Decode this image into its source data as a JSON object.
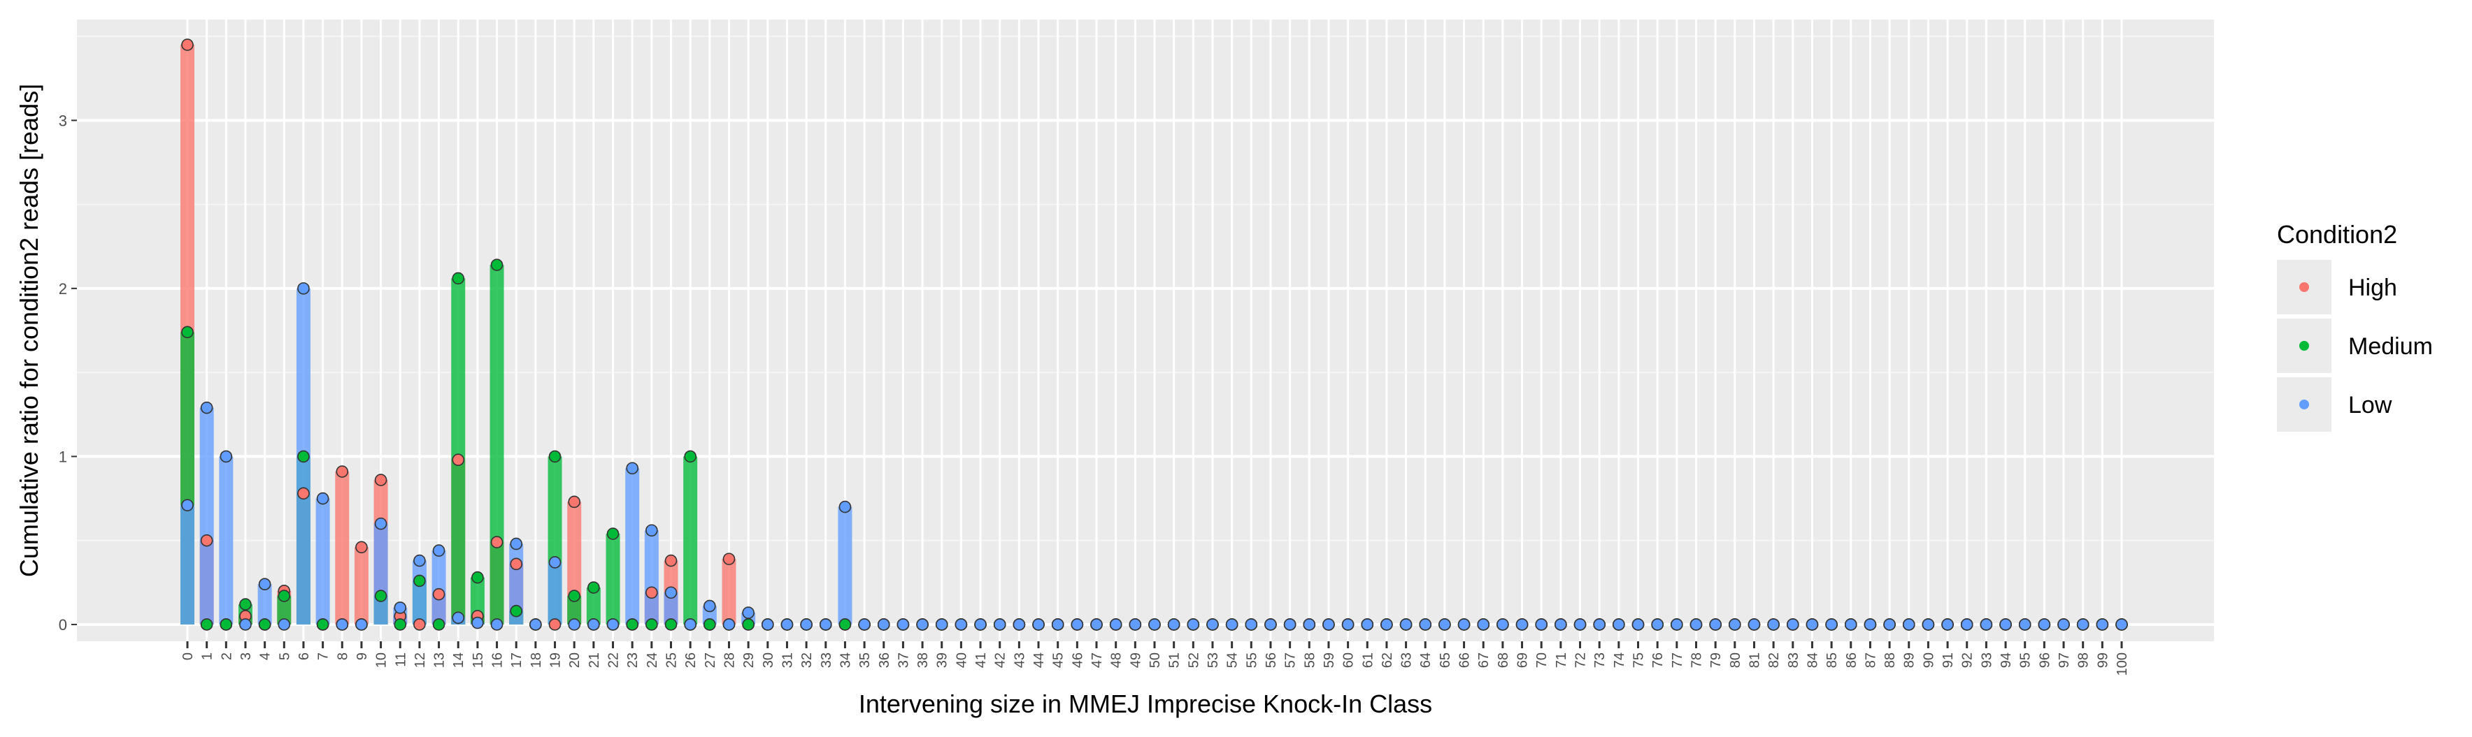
{
  "chart_data": {
    "type": "bar",
    "xlabel": "Intervening size in MMEJ Imprecise Knock-In Class",
    "ylabel": "Cumulative ratio for condition2 reads [reads]",
    "categories": [
      "0",
      "1",
      "2",
      "3",
      "4",
      "5",
      "6",
      "7",
      "8",
      "9",
      "10",
      "11",
      "12",
      "13",
      "14",
      "15",
      "16",
      "17",
      "18",
      "19",
      "20",
      "21",
      "22",
      "23",
      "24",
      "25",
      "26",
      "27",
      "28",
      "29",
      "30",
      "31",
      "32",
      "33",
      "34",
      "35",
      "36",
      "37",
      "38",
      "39",
      "40",
      "41",
      "42",
      "43",
      "44",
      "45",
      "46",
      "47",
      "48",
      "49",
      "50",
      "51",
      "52",
      "53",
      "54",
      "55",
      "56",
      "57",
      "58",
      "59",
      "60",
      "61",
      "62",
      "63",
      "64",
      "65",
      "66",
      "67",
      "68",
      "69",
      "70",
      "71",
      "72",
      "73",
      "74",
      "75",
      "76",
      "77",
      "78",
      "79",
      "80",
      "81",
      "82",
      "83",
      "84",
      "85",
      "86",
      "87",
      "88",
      "89",
      "90",
      "91",
      "92",
      "93",
      "94",
      "95",
      "96",
      "97",
      "98",
      "99",
      "100"
    ],
    "yticks": [
      "0",
      "1",
      "2",
      "3"
    ],
    "ylim": [
      -0.1,
      3.6
    ],
    "grid": true,
    "legend": {
      "title": "Condition2",
      "position": "right"
    },
    "series": [
      {
        "name": "High",
        "color": "#F8766D",
        "values": [
          3.45,
          0.5,
          0,
          0.05,
          0,
          0.2,
          0.78,
          0,
          0.91,
          0.46,
          0.86,
          0.05,
          0,
          0.18,
          0.98,
          0.05,
          0.49,
          0.36,
          0,
          0,
          0.73,
          0,
          0,
          0,
          0.19,
          0.38,
          0,
          0,
          0.39,
          0,
          0,
          0,
          0,
          0,
          0,
          0,
          0,
          0,
          0,
          0,
          0,
          0,
          0,
          0,
          0,
          0,
          0,
          0,
          0,
          0,
          0,
          0,
          0,
          0,
          0,
          0,
          0,
          0,
          0,
          0,
          0,
          0,
          0,
          0,
          0,
          0,
          0,
          0,
          0,
          0,
          0,
          0,
          0,
          0,
          0,
          0,
          0,
          0,
          0,
          0,
          0,
          0,
          0,
          0,
          0,
          0,
          0,
          0,
          0,
          0,
          0,
          0,
          0,
          0,
          0,
          0,
          0,
          0,
          0,
          0,
          0
        ]
      },
      {
        "name": "Medium",
        "color": "#00BA38",
        "values": [
          1.74,
          0,
          0,
          0.12,
          0,
          0.17,
          1.0,
          0,
          0,
          0,
          0.17,
          0,
          0.26,
          0,
          2.06,
          0.28,
          2.14,
          0.08,
          0,
          1.0,
          0.17,
          0.22,
          0.54,
          0,
          0,
          0,
          1.0,
          0,
          0,
          0,
          0,
          0,
          0,
          0,
          0,
          0,
          0,
          0,
          0,
          0,
          0,
          0,
          0,
          0,
          0,
          0,
          0,
          0,
          0,
          0,
          0,
          0,
          0,
          0,
          0,
          0,
          0,
          0,
          0,
          0,
          0,
          0,
          0,
          0,
          0,
          0,
          0,
          0,
          0,
          0,
          0,
          0,
          0,
          0,
          0,
          0,
          0,
          0,
          0,
          0,
          0,
          0,
          0,
          0,
          0,
          0,
          0,
          0,
          0,
          0,
          0,
          0,
          0,
          0,
          0,
          0,
          0,
          0,
          0,
          0,
          0
        ]
      },
      {
        "name": "Low",
        "color": "#619CFF",
        "values": [
          0.71,
          1.29,
          1.0,
          0,
          0.24,
          0,
          2.0,
          0.75,
          0,
          0,
          0.6,
          0.1,
          0.38,
          0.44,
          0.04,
          0.01,
          0,
          0.48,
          0,
          0.37,
          0,
          0,
          0,
          0.93,
          0.56,
          0.19,
          0,
          0.11,
          0,
          0.07,
          0,
          0,
          0,
          0,
          0.7,
          0,
          0,
          0,
          0,
          0,
          0,
          0,
          0,
          0,
          0,
          0,
          0,
          0,
          0,
          0,
          0,
          0,
          0,
          0,
          0,
          0,
          0,
          0,
          0,
          0,
          0,
          0,
          0,
          0,
          0,
          0,
          0,
          0,
          0,
          0,
          0,
          0,
          0,
          0,
          0,
          0,
          0,
          0,
          0,
          0,
          0,
          0,
          0,
          0,
          0,
          0,
          0,
          0,
          0,
          0,
          0,
          0,
          0,
          0,
          0,
          0,
          0,
          0,
          0,
          0,
          0
        ]
      }
    ]
  }
}
